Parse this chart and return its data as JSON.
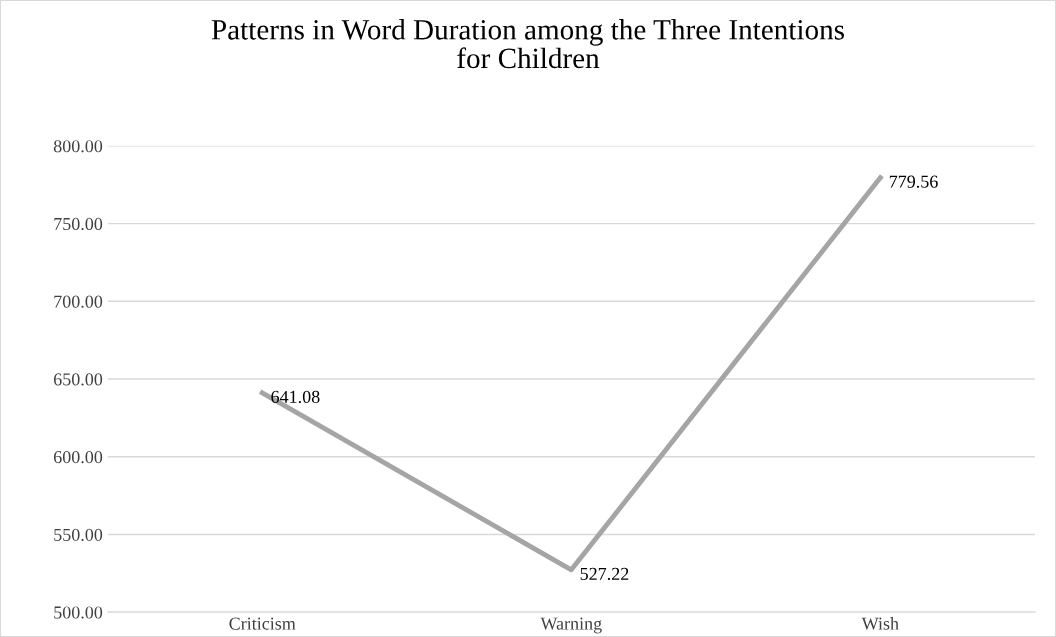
{
  "chart_data": {
    "type": "line",
    "title": "Patterns in Word Duration among the Three Intentions\nfor Children",
    "categories": [
      "Criticism",
      "Warning",
      "Wish"
    ],
    "series": [
      {
        "color": "#a5a5a5",
        "values": [
          641.08,
          527.22,
          779.56
        ]
      }
    ],
    "ylim": [
      500,
      800
    ],
    "yticks": [
      {
        "value": 500,
        "label": "500.00"
      },
      {
        "value": 550,
        "label": "550.00"
      },
      {
        "value": 600,
        "label": "600.00"
      },
      {
        "value": 650,
        "label": "650.00"
      },
      {
        "value": 700,
        "label": "700.00"
      },
      {
        "value": 750,
        "label": "750.00"
      },
      {
        "value": 800,
        "label": "800.00"
      }
    ],
    "grid": "y",
    "data_labels": true,
    "marker": "none",
    "line_style": "solid",
    "legend": false
  }
}
